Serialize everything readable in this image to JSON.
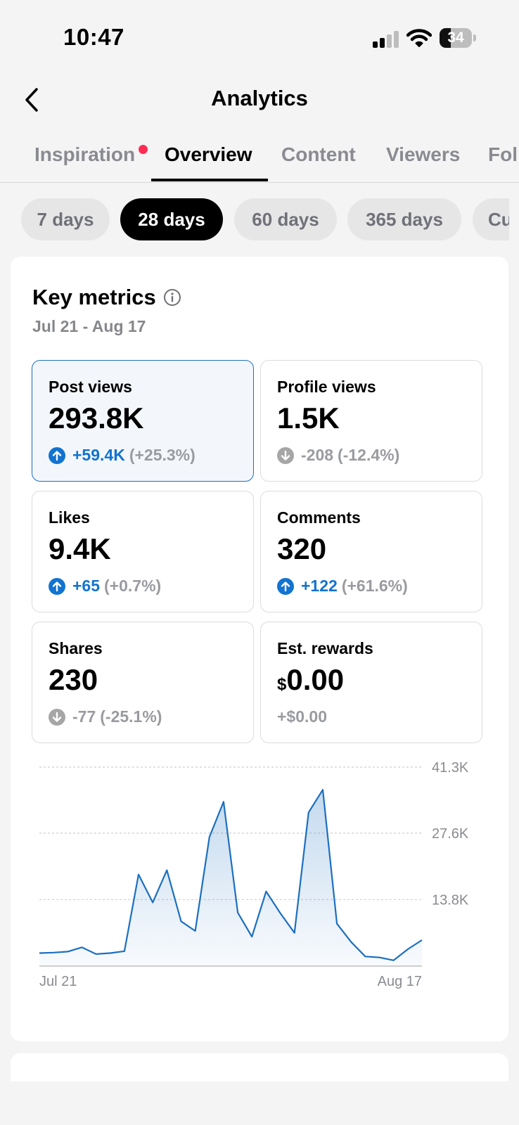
{
  "status_bar": {
    "time": "10:47",
    "battery": "34",
    "battery_level": 0.34
  },
  "header": {
    "title": "Analytics",
    "back_icon": "chevron-left-icon"
  },
  "tabs": [
    {
      "label": "Inspiration",
      "active": false,
      "has_dot": true
    },
    {
      "label": "Overview",
      "active": true
    },
    {
      "label": "Content",
      "active": false
    },
    {
      "label": "Viewers",
      "active": false
    },
    {
      "label": "Fol",
      "active": false
    }
  ],
  "ranges": [
    {
      "label": "7 days",
      "active": false
    },
    {
      "label": "28 days",
      "active": true
    },
    {
      "label": "60 days",
      "active": false
    },
    {
      "label": "365 days",
      "active": false
    },
    {
      "label": "Cu",
      "active": false
    }
  ],
  "key_metrics": {
    "title": "Key metrics",
    "date_range": "Jul 21 - Aug 17",
    "metrics": [
      {
        "label": "Post views",
        "value": "293.8K",
        "delta": "+59.4K",
        "pct": "(+25.3%)",
        "direction": "up"
      },
      {
        "label": "Profile views",
        "value": "1.5K",
        "delta": "-208",
        "pct": "(-12.4%)",
        "direction": "down"
      },
      {
        "label": "Likes",
        "value": "9.4K",
        "delta": "+65",
        "pct": "(+0.7%)",
        "direction": "up"
      },
      {
        "label": "Comments",
        "value": "320",
        "delta": "+122",
        "pct": "(+61.6%)",
        "direction": "up"
      },
      {
        "label": "Shares",
        "value": "230",
        "delta": "-77",
        "pct": "(-25.1%)",
        "direction": "down"
      },
      {
        "label": "Est. rewards",
        "currency": "$",
        "value": "0.00",
        "delta": "+$0.00",
        "pct": "",
        "direction": "neutral"
      }
    ]
  },
  "colors": {
    "accent": "#1273d0",
    "active_tab": "#000000",
    "notification_dot": "#fe2c55",
    "chart_line": "#1c6fc0"
  },
  "chart_data": {
    "type": "area",
    "x_start_label": "Jul 21",
    "x_end_label": "Aug 17",
    "y_ticks": [
      "13.8K",
      "27.6K",
      "41.3K"
    ],
    "y_tick_values": [
      13800,
      27600,
      41300
    ],
    "ylim": [
      0,
      41300
    ],
    "grid": true,
    "values": [
      2700,
      2800,
      3000,
      3900,
      2500,
      2700,
      3100,
      19000,
      13200,
      19900,
      9300,
      7300,
      26800,
      34100,
      11100,
      6100,
      15500,
      11000,
      6900,
      31900,
      36600,
      8800,
      5000,
      2000,
      1800,
      1200,
      3500,
      5400
    ]
  }
}
